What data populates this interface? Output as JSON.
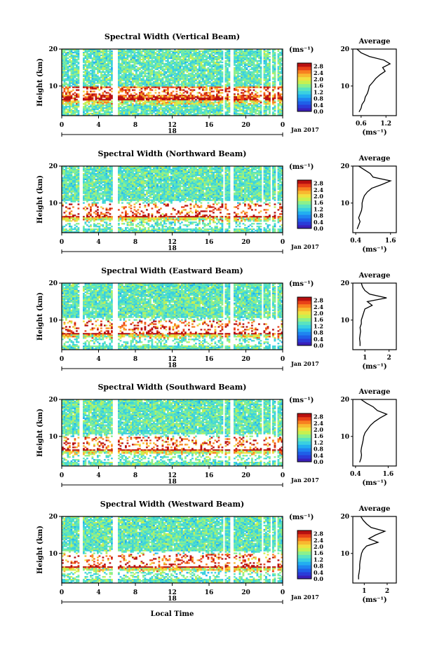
{
  "page": {
    "xlabel": "Local Time"
  },
  "colormap": [
    "#3a1fb8",
    "#2a3cd8",
    "#1f5fe8",
    "#1f84f0",
    "#22aef0",
    "#3ad0e0",
    "#5ae4c0",
    "#8cf08c",
    "#c8f050",
    "#f0e040",
    "#f8b830",
    "#f88020",
    "#e84018",
    "#b81010"
  ],
  "chart_data": [
    {
      "type": "heatmap",
      "title": "Spectral Width (Vertical Beam)",
      "ylabel": "Height (km)",
      "ylim": [
        2,
        20
      ],
      "yticks": [
        "20",
        "10"
      ],
      "xlim": [
        0,
        24
      ],
      "xticks": [
        "0",
        "4",
        "8",
        "12",
        "16",
        "20",
        "0"
      ],
      "date_label": "18",
      "date_right": "Jan 2017",
      "colorbar": {
        "unit": "(ms⁻¹)",
        "ticks": [
          "2.8",
          "2.4",
          "2.0",
          "1.6",
          "1.2",
          "0.8",
          "0.4",
          "0.0"
        ],
        "range": [
          0,
          3.0
        ]
      },
      "profile": {
        "title": "Average",
        "xlabel": "(ms⁻¹)",
        "xticks": [
          "0.6",
          "1.2"
        ],
        "xlim": [
          0.4,
          1.45
        ],
        "heights": [
          3,
          4,
          5,
          6,
          7,
          8,
          9,
          10,
          11,
          12,
          13,
          14,
          15,
          16,
          17,
          18,
          19,
          20
        ],
        "values": [
          0.55,
          0.6,
          0.62,
          0.68,
          0.7,
          0.75,
          0.78,
          0.8,
          0.88,
          0.95,
          1.05,
          1.18,
          1.12,
          1.3,
          1.15,
          0.8,
          0.6,
          0.5
        ]
      }
    },
    {
      "type": "heatmap",
      "title": "Spectral Width (Northward Beam)",
      "ylabel": "Height (km)",
      "ylim": [
        2,
        20
      ],
      "yticks": [
        "20",
        "10"
      ],
      "xlim": [
        0,
        24
      ],
      "xticks": [
        "0",
        "4",
        "8",
        "12",
        "16",
        "20",
        "0"
      ],
      "date_label": "18",
      "date_right": "Jan 2017",
      "colorbar": {
        "unit": "(ms⁻¹)",
        "ticks": [
          "2.8",
          "2.4",
          "2.0",
          "1.6",
          "1.2",
          "0.8",
          "0.4",
          "0.0"
        ],
        "range": [
          0,
          3.0
        ]
      },
      "profile": {
        "title": "Average",
        "xlabel": "(ms⁻¹)",
        "xticks": [
          "0.4",
          "1.6"
        ],
        "xlim": [
          0.3,
          1.8
        ],
        "heights": [
          3,
          4,
          5,
          6,
          7,
          8,
          9,
          10,
          11,
          12,
          13,
          14,
          15,
          16,
          17,
          18,
          19,
          20
        ],
        "values": [
          0.45,
          0.5,
          0.55,
          0.5,
          0.55,
          0.6,
          0.62,
          0.62,
          0.65,
          0.7,
          0.8,
          0.95,
          1.3,
          1.6,
          1.0,
          0.9,
          0.7,
          0.5
        ]
      }
    },
    {
      "type": "heatmap",
      "title": "Spectral Width (Eastward Beam)",
      "ylabel": "Height (km)",
      "ylim": [
        2,
        20
      ],
      "yticks": [
        "20",
        "10"
      ],
      "xlim": [
        0,
        24
      ],
      "xticks": [
        "0",
        "4",
        "8",
        "12",
        "16",
        "20",
        "0"
      ],
      "date_label": "18",
      "date_right": "Jan 2017",
      "colorbar": {
        "unit": "(ms⁻¹)",
        "ticks": [
          "2.8",
          "2.4",
          "2.0",
          "1.6",
          "1.2",
          "0.8",
          "0.4",
          "0.0"
        ],
        "range": [
          0,
          3.0
        ]
      },
      "profile": {
        "title": "Average",
        "xlabel": "(ms⁻¹)",
        "xticks": [
          "1",
          "2"
        ],
        "xlim": [
          0.5,
          2.3
        ],
        "heights": [
          3,
          4,
          5,
          6,
          7,
          8,
          9,
          10,
          11,
          12,
          13,
          14,
          15,
          16,
          17,
          18,
          19,
          20
        ],
        "values": [
          0.8,
          0.8,
          0.78,
          0.8,
          0.82,
          0.8,
          0.85,
          0.85,
          0.9,
          0.95,
          1.0,
          1.3,
          1.1,
          1.9,
          1.2,
          1.0,
          0.9,
          0.85
        ]
      }
    },
    {
      "type": "heatmap",
      "title": "Spectral Width (Southward Beam)",
      "ylabel": "Height (km)",
      "ylim": [
        2,
        20
      ],
      "yticks": [
        "20",
        "10"
      ],
      "xlim": [
        0,
        24
      ],
      "xticks": [
        "0",
        "4",
        "8",
        "12",
        "16",
        "20",
        "0"
      ],
      "date_label": "18",
      "date_right": "Jan 2017",
      "colorbar": {
        "unit": "(ms⁻¹)",
        "ticks": [
          "2.8",
          "2.4",
          "2.0",
          "1.6",
          "1.2",
          "0.8",
          "0.4",
          "0.0"
        ],
        "range": [
          0,
          3.0
        ]
      },
      "profile": {
        "title": "Average",
        "xlabel": "(ms⁻¹)",
        "xticks": [
          "0.4",
          "1.6"
        ],
        "xlim": [
          0.3,
          1.9
        ],
        "heights": [
          3,
          4,
          5,
          6,
          7,
          8,
          9,
          10,
          11,
          12,
          13,
          14,
          15,
          16,
          17,
          18,
          19,
          20
        ],
        "values": [
          0.55,
          0.6,
          0.62,
          0.6,
          0.62,
          0.65,
          0.68,
          0.7,
          0.75,
          0.85,
          0.95,
          1.1,
          1.3,
          1.55,
          1.2,
          1.05,
          0.8,
          0.6
        ]
      }
    },
    {
      "type": "heatmap",
      "title": "Spectral Width (Westward Beam)",
      "ylabel": "Height (km)",
      "ylim": [
        2,
        20
      ],
      "yticks": [
        "20",
        "10"
      ],
      "xlim": [
        0,
        24
      ],
      "xticks": [
        "0",
        "4",
        "8",
        "12",
        "16",
        "20",
        "0"
      ],
      "date_label": "18",
      "date_right": "Jan 2017",
      "colorbar": {
        "unit": "(ms⁻¹)",
        "ticks": [
          "2.8",
          "2.4",
          "2.0",
          "1.6",
          "1.2",
          "0.8",
          "0.4",
          "0.0"
        ],
        "range": [
          0,
          3.0
        ]
      },
      "profile": {
        "title": "Average",
        "xlabel": "(ms⁻¹)",
        "xticks": [
          "1",
          "2"
        ],
        "xlim": [
          0.5,
          2.4
        ],
        "heights": [
          3,
          4,
          5,
          6,
          7,
          8,
          9,
          10,
          11,
          12,
          13,
          14,
          15,
          16,
          17,
          18,
          19,
          20
        ],
        "values": [
          0.75,
          0.75,
          0.78,
          0.8,
          0.8,
          0.82,
          0.85,
          0.88,
          0.95,
          1.1,
          1.6,
          1.2,
          1.5,
          1.9,
          1.3,
          1.1,
          0.95,
          0.85
        ]
      }
    }
  ]
}
